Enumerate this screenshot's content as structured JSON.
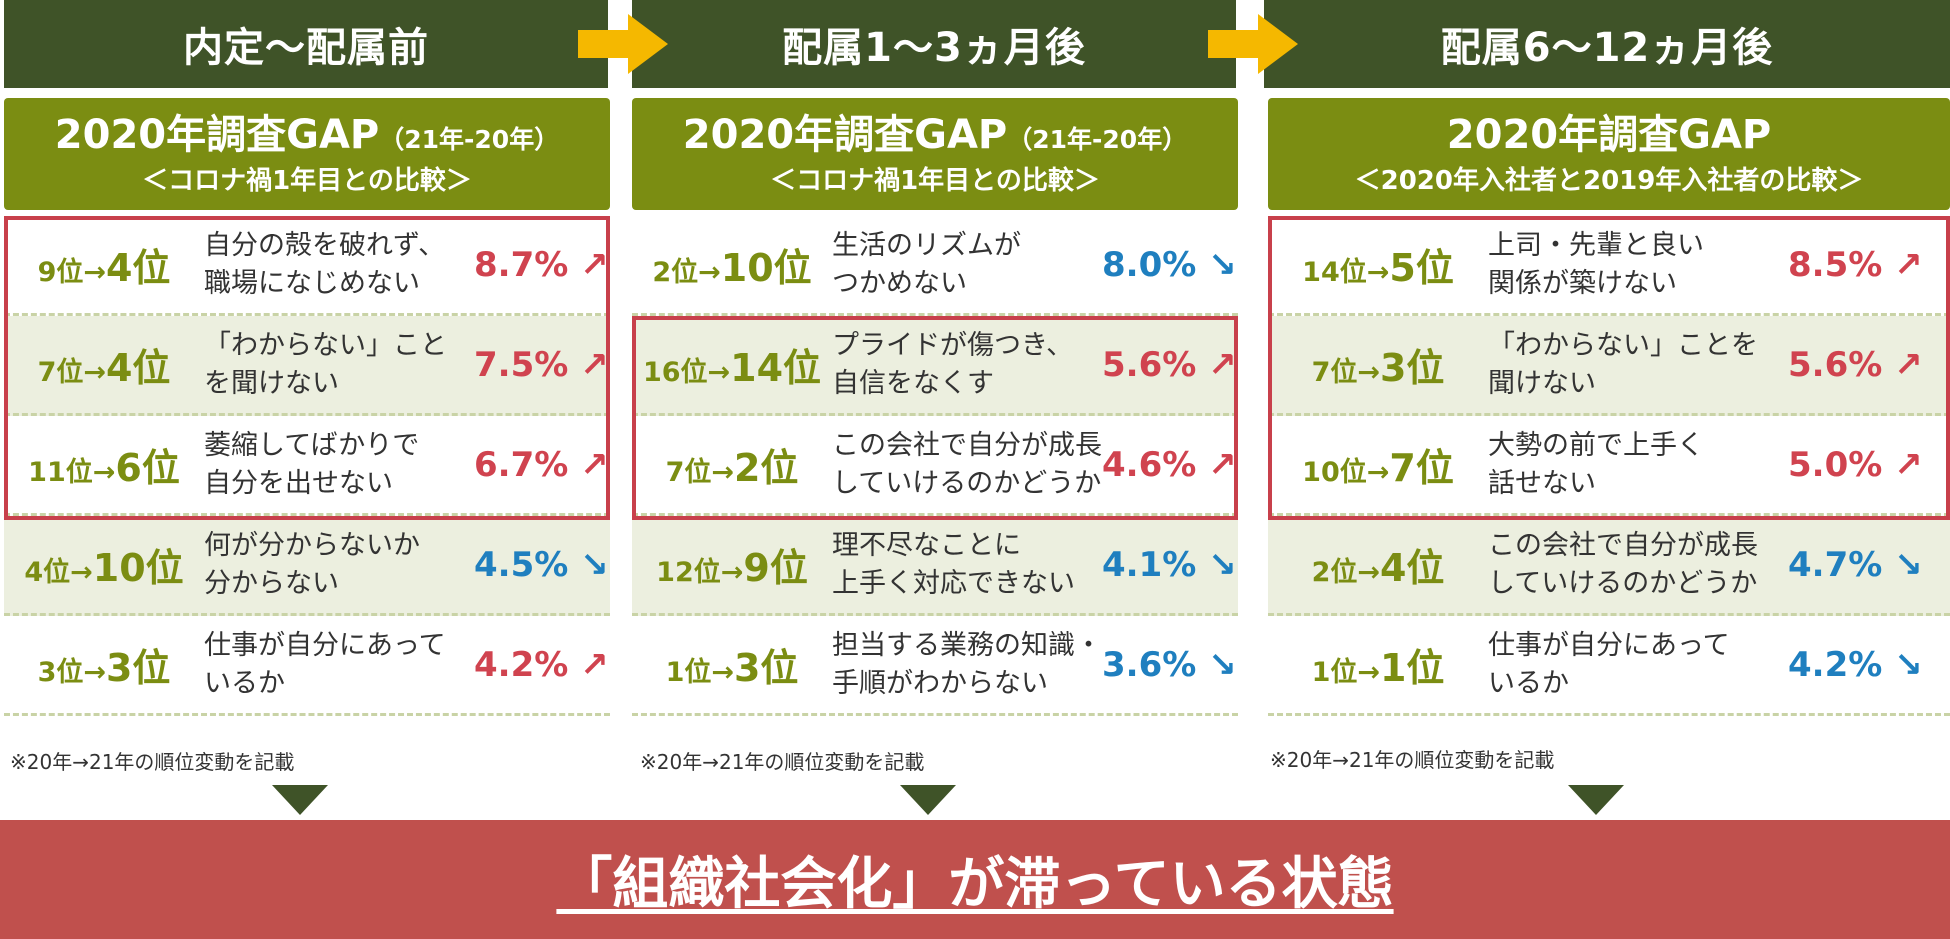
{
  "stages": [
    "内定〜配属前",
    "配属1〜3ヵ月後",
    "配属6〜12ヵ月後"
  ],
  "columns": [
    {
      "header_title": "2020年調査GAP",
      "header_suffix": "（21年-20年）",
      "header_sub": "＜コロナ禍1年目との比較＞",
      "rows": [
        {
          "from": "9位",
          "arrow": "→",
          "to": "4位",
          "desc": "自分の殻を破れず、\n職場になじめない",
          "pct": "8.7%",
          "trend": "↗",
          "dir": "up"
        },
        {
          "from": "7位",
          "arrow": "→",
          "to": "4位",
          "desc": "「わからない」こと\nを聞けない",
          "pct": "7.5%",
          "trend": "↗",
          "dir": "up"
        },
        {
          "from": "11位",
          "arrow": "→",
          "to": "6位",
          "desc": "萎縮してばかりで\n自分を出せない",
          "pct": "6.7%",
          "trend": "↗",
          "dir": "up"
        },
        {
          "from": "4位",
          "arrow": "→",
          "to": "10位",
          "desc": "何が分からないか\n分からない",
          "pct": "4.5%",
          "trend": "↘",
          "dir": "down"
        },
        {
          "from": "3位",
          "arrow": "→",
          "to": "3位",
          "desc": "仕事が自分にあって\nいるか",
          "pct": "4.2%",
          "trend": "↗",
          "dir": "up"
        }
      ],
      "note": "※20年→21年の順位変動を記載"
    },
    {
      "header_title": "2020年調査GAP",
      "header_suffix": "（21年-20年）",
      "header_sub": "＜コロナ禍1年目との比較＞",
      "rows": [
        {
          "from": "2位",
          "arrow": "→",
          "to": "10位",
          "desc": "生活のリズムが\nつかめない",
          "pct": "8.0%",
          "trend": "↘",
          "dir": "down"
        },
        {
          "from": "16位",
          "arrow": "→",
          "to": "14位",
          "desc": "プライドが傷つき、\n自信をなくす",
          "pct": "5.6%",
          "trend": "↗",
          "dir": "up"
        },
        {
          "from": "7位",
          "arrow": "→",
          "to": "2位",
          "desc": "この会社で自分が成長\nしていけるのかどうか",
          "pct": "4.6%",
          "trend": "↗",
          "dir": "up"
        },
        {
          "from": "12位",
          "arrow": "→",
          "to": "9位",
          "desc": "理不尽なことに\n上手く対応できない",
          "pct": "4.1%",
          "trend": "↘",
          "dir": "down"
        },
        {
          "from": "1位",
          "arrow": "→",
          "to": "3位",
          "desc": "担当する業務の知識・\n手順がわからない",
          "pct": "3.6%",
          "trend": "↘",
          "dir": "down"
        }
      ],
      "note": "※20年→21年の順位変動を記載"
    },
    {
      "header_title": "2020年調査GAP",
      "header_suffix": "",
      "header_sub": "＜2020年入社者と2019年入社者の比較＞",
      "rows": [
        {
          "from": "14位",
          "arrow": "→",
          "to": "5位",
          "desc": "上司・先輩と良い\n関係が築けない",
          "pct": "8.5%",
          "trend": "↗",
          "dir": "up"
        },
        {
          "from": "7位",
          "arrow": "→",
          "to": "3位",
          "desc": "「わからない」ことを\n聞けない",
          "pct": "5.6%",
          "trend": "↗",
          "dir": "up"
        },
        {
          "from": "10位",
          "arrow": "→",
          "to": "7位",
          "desc": "大勢の前で上手く\n話せない",
          "pct": "5.0%",
          "trend": "↗",
          "dir": "up"
        },
        {
          "from": "2位",
          "arrow": "→",
          "to": "4位",
          "desc": "この会社で自分が成長\nしていけるのかどうか",
          "pct": "4.7%",
          "trend": "↘",
          "dir": "down"
        },
        {
          "from": "1位",
          "arrow": "→",
          "to": "1位",
          "desc": "仕事が自分にあって\nいるか",
          "pct": "4.2%",
          "trend": "↘",
          "dir": "down"
        }
      ],
      "note": "※20年→21年の順位変動を記載"
    }
  ],
  "conclusion": "「組織社会化」が滞っている状態",
  "colors": {
    "stage": "#3f5328",
    "header": "#7b8d12",
    "up": "#d0434f",
    "down": "#1f7fbf",
    "highlight": "#c8404b",
    "arrow": "#f5b800",
    "conclusion": "#c0504d"
  }
}
